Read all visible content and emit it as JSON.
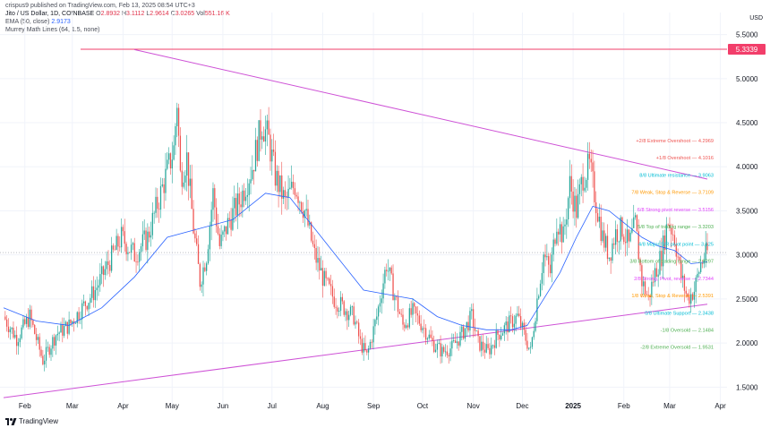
{
  "publisher_line": "crispus9 published on TradingView.com, Feb 13, 2025 08:54 UTC+3",
  "symbol_line": {
    "symbol": "Jito / US Dollar, 1D, COINBASE",
    "o_label": "O",
    "o": "2.8932",
    "h_label": "H",
    "h": "3.1112",
    "l_label": "L",
    "l": "2.9614",
    "c_label": "C",
    "c": "3.0265",
    "vol_label": "Vol",
    "vol": "551.16 K"
  },
  "ema_line": {
    "label": "EMA (50, close)",
    "value": "2.9173"
  },
  "murrey_line": {
    "label": "Murrey Math Lines (64, 1.5, none)"
  },
  "footer": {
    "brand": "TradingView"
  },
  "colors": {
    "up": "#26a69a",
    "down": "#ef5350",
    "ema": "#2962ff",
    "trendline": "#ce52d6",
    "horizontal": "#f23e6a"
  },
  "chart_data": {
    "type": "candlestick",
    "currency": "USD",
    "ylim": [
      1.3,
      5.75
    ],
    "y_ticks": [
      "5.5000",
      "5.0000",
      "4.5000",
      "4.0000",
      "3.5000",
      "3.0000",
      "2.5000",
      "2.0000",
      "1.5000"
    ],
    "x_ticks": [
      "Feb",
      "Mar",
      "Apr",
      "May",
      "Jun",
      "Jul",
      "Aug",
      "Sep",
      "Oct",
      "Nov",
      "Dec",
      "2025",
      "Feb",
      "Mar",
      "Apr"
    ],
    "horizontal_level": {
      "value": 5.3339,
      "label": "5.3339"
    },
    "last_price": 3.0265,
    "trendlines": [
      {
        "name": "upper",
        "from": [
          "Apr",
          5.33
        ],
        "to": [
          "Apr 2025",
          3.86
        ]
      },
      {
        "name": "lower",
        "from": [
          "Jan",
          1.38
        ],
        "to": [
          "Apr 2025",
          2.44
        ]
      }
    ],
    "murrey_lines": [
      {
        "label": "+2/8 Extreme Overshoot",
        "value": 4.2969,
        "color": "#ef5350"
      },
      {
        "label": "+1/8 Overshoot",
        "value": 4.1016,
        "color": "#ef5350"
      },
      {
        "label": "8/8 Ultimate resistance",
        "value": 3.9063,
        "color": "#00bcd4"
      },
      {
        "label": "7/8 Weak, Stop & Reverse",
        "value": 3.7109,
        "color": "#ff9800"
      },
      {
        "label": "6/8 Strong pivot reverse",
        "value": 3.5156,
        "color": "#e040fb"
      },
      {
        "label": "5/8 Top of trading range",
        "value": 3.3203,
        "color": "#4caf50"
      },
      {
        "label": "4/8 Major S/R pivot point",
        "value": 3.125,
        "color": "#00bcd4"
      },
      {
        "label": "3/8 Bottom of trading range",
        "value": 2.9297,
        "color": "#4caf50"
      },
      {
        "label": "2/8 Strong, Pivot, reverse",
        "value": 2.7344,
        "color": "#e040fb"
      },
      {
        "label": "1/8 Weak, Stop & Reverse",
        "value": 2.5391,
        "color": "#ff9800"
      },
      {
        "label": "0/8 Ultimate Support",
        "value": 2.3438,
        "color": "#00bcd4"
      },
      {
        "label": "-1/8 Oversold",
        "value": 2.1484,
        "color": "#4caf50"
      },
      {
        "label": "-2/8 Extreme Oversold",
        "value": 1.9531,
        "color": "#4caf50"
      }
    ],
    "price_path": [
      [
        0,
        2.3
      ],
      [
        8,
        2.05
      ],
      [
        16,
        2.3
      ],
      [
        24,
        1.8
      ],
      [
        32,
        2.1
      ],
      [
        40,
        2.2
      ],
      [
        48,
        2.4
      ],
      [
        56,
        2.6
      ],
      [
        64,
        2.9
      ],
      [
        72,
        3.2
      ],
      [
        80,
        3.0
      ],
      [
        88,
        3.2
      ],
      [
        96,
        3.7
      ],
      [
        104,
        4.2
      ],
      [
        106,
        4.75
      ],
      [
        108,
        3.9
      ],
      [
        112,
        4.1
      ],
      [
        116,
        3.3
      ],
      [
        120,
        2.7
      ],
      [
        124,
        3.0
      ],
      [
        128,
        3.7
      ],
      [
        132,
        3.1
      ],
      [
        138,
        3.4
      ],
      [
        144,
        3.6
      ],
      [
        152,
        4.0
      ],
      [
        158,
        4.5
      ],
      [
        162,
        4.3
      ],
      [
        166,
        3.9
      ],
      [
        172,
        3.6
      ],
      [
        178,
        3.8
      ],
      [
        184,
        3.5
      ],
      [
        190,
        3.0
      ],
      [
        196,
        2.7
      ],
      [
        202,
        2.5
      ],
      [
        208,
        2.4
      ],
      [
        214,
        2.3
      ],
      [
        218,
        2.0
      ],
      [
        222,
        1.85
      ],
      [
        228,
        2.3
      ],
      [
        234,
        2.9
      ],
      [
        238,
        2.6
      ],
      [
        244,
        2.2
      ],
      [
        250,
        2.35
      ],
      [
        256,
        2.2
      ],
      [
        262,
        2.0
      ],
      [
        268,
        1.9
      ],
      [
        274,
        1.95
      ],
      [
        280,
        2.1
      ],
      [
        286,
        2.3
      ],
      [
        290,
        2.0
      ],
      [
        296,
        1.9
      ],
      [
        302,
        2.1
      ],
      [
        308,
        2.2
      ],
      [
        314,
        2.3
      ],
      [
        318,
        2.1
      ],
      [
        322,
        1.9
      ],
      [
        326,
        2.5
      ],
      [
        330,
        3.0
      ],
      [
        334,
        2.8
      ],
      [
        338,
        3.4
      ],
      [
        342,
        3.2
      ],
      [
        346,
        3.8
      ],
      [
        350,
        3.5
      ],
      [
        354,
        3.9
      ],
      [
        358,
        4.0
      ],
      [
        362,
        3.6
      ],
      [
        366,
        3.2
      ],
      [
        370,
        3.0
      ],
      [
        374,
        3.25
      ],
      [
        378,
        3.3
      ],
      [
        382,
        3.1
      ],
      [
        386,
        3.35
      ],
      [
        390,
        2.7
      ],
      [
        394,
        2.5
      ],
      [
        398,
        2.8
      ],
      [
        402,
        3.0
      ],
      [
        406,
        3.4
      ],
      [
        410,
        3.2
      ],
      [
        414,
        2.75
      ],
      [
        418,
        2.5
      ],
      [
        422,
        2.6
      ],
      [
        426,
        2.9
      ],
      [
        430,
        3.03
      ]
    ],
    "ema_path": [
      [
        0,
        2.4
      ],
      [
        20,
        2.25
      ],
      [
        40,
        2.2
      ],
      [
        60,
        2.4
      ],
      [
        80,
        2.75
      ],
      [
        100,
        3.2
      ],
      [
        120,
        3.3
      ],
      [
        140,
        3.4
      ],
      [
        160,
        3.7
      ],
      [
        175,
        3.65
      ],
      [
        190,
        3.3
      ],
      [
        205,
        2.95
      ],
      [
        220,
        2.6
      ],
      [
        235,
        2.55
      ],
      [
        250,
        2.5
      ],
      [
        265,
        2.3
      ],
      [
        280,
        2.2
      ],
      [
        295,
        2.15
      ],
      [
        310,
        2.15
      ],
      [
        320,
        2.2
      ],
      [
        330,
        2.5
      ],
      [
        340,
        2.8
      ],
      [
        350,
        3.2
      ],
      [
        360,
        3.55
      ],
      [
        370,
        3.5
      ],
      [
        380,
        3.35
      ],
      [
        390,
        3.2
      ],
      [
        400,
        3.1
      ],
      [
        410,
        3.05
      ],
      [
        420,
        2.9
      ],
      [
        430,
        2.92
      ]
    ]
  }
}
